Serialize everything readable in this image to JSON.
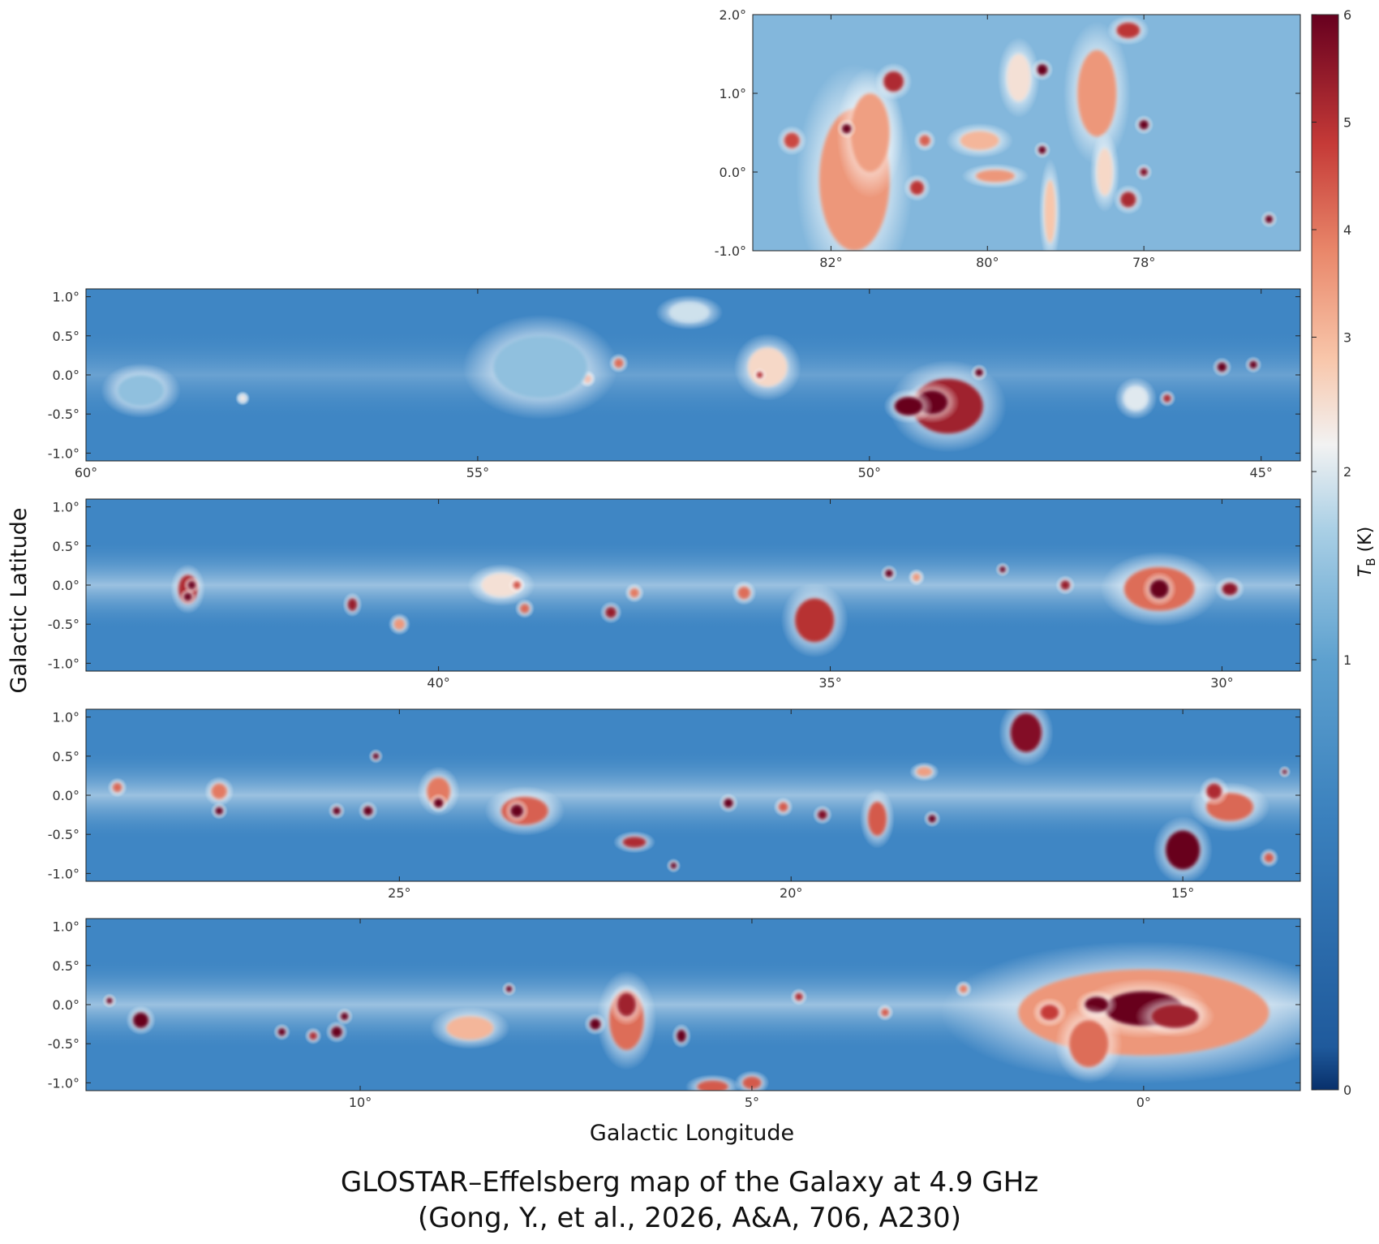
{
  "caption": {
    "line1": "GLOSTAR–Effelsberg map of the Galaxy at 4.9 GHz",
    "line2": "(Gong, Y., et al., 2026, A&A, 706, A230)"
  },
  "chart_data": {
    "type": "heatmap",
    "xlabel": "Galactic Longitude",
    "ylabel": "Galactic Latitude",
    "colorbar": {
      "label_main": "T",
      "label_sub": "B",
      "label_unit": " (K)",
      "range": [
        0,
        6
      ],
      "ticks": [
        0,
        1,
        2,
        3,
        4,
        5,
        6
      ],
      "tick_labels": [
        "0",
        "1",
        "2",
        "3",
        "4",
        "5",
        "6"
      ],
      "stretch": "nonlinear",
      "colormap": [
        "#08306b",
        "#2166ac",
        "#4393c3",
        "#92c5de",
        "#f7f7f7",
        "#f4a582",
        "#d6604d",
        "#b2182b",
        "#67001f"
      ]
    },
    "panels": [
      {
        "id": "cygnus",
        "lon_range": [
          83.0,
          76.0
        ],
        "lat_range": [
          -1.0,
          2.0
        ],
        "x_ticks": [
          82,
          80,
          78
        ],
        "x_tick_labels": [
          "82°",
          "80°",
          "78°"
        ],
        "y_ticks": [
          -1,
          0,
          1,
          2
        ],
        "y_tick_labels": [
          "-1.0°",
          "0.0°",
          "1.0°",
          "2.0°"
        ],
        "sources": [
          {
            "l": 81.7,
            "b": -0.1,
            "a": 0.45,
            "c": 0.9,
            "t": 2.6
          },
          {
            "l": 81.5,
            "b": 0.5,
            "a": 0.25,
            "c": 0.5,
            "t": 2.5
          },
          {
            "l": 81.8,
            "b": 0.55,
            "a": 0.06,
            "c": 0.06,
            "t": 6
          },
          {
            "l": 81.2,
            "b": 1.15,
            "a": 0.13,
            "c": 0.13,
            "t": 4.5
          },
          {
            "l": 82.5,
            "b": 0.4,
            "a": 0.1,
            "c": 0.1,
            "t": 3.8
          },
          {
            "l": 80.9,
            "b": -0.2,
            "a": 0.09,
            "c": 0.09,
            "t": 4.2
          },
          {
            "l": 80.8,
            "b": 0.4,
            "a": 0.07,
            "c": 0.07,
            "t": 3.4
          },
          {
            "l": 80.1,
            "b": 0.4,
            "a": 0.25,
            "c": 0.12,
            "t": 2.2
          },
          {
            "l": 79.9,
            "b": -0.05,
            "a": 0.25,
            "c": 0.08,
            "t": 2.6
          },
          {
            "l": 79.3,
            "b": 1.3,
            "a": 0.07,
            "c": 0.07,
            "t": 6
          },
          {
            "l": 79.3,
            "b": 0.28,
            "a": 0.05,
            "c": 0.05,
            "t": 6
          },
          {
            "l": 79.2,
            "b": -0.5,
            "a": 0.07,
            "c": 0.4,
            "t": 2.0
          },
          {
            "l": 78.6,
            "b": 1.0,
            "a": 0.25,
            "c": 0.55,
            "t": 2.6
          },
          {
            "l": 78.2,
            "b": 1.8,
            "a": 0.15,
            "c": 0.1,
            "t": 4.2
          },
          {
            "l": 78.0,
            "b": 0.6,
            "a": 0.06,
            "c": 0.06,
            "t": 6
          },
          {
            "l": 78.0,
            "b": 0.0,
            "a": 0.05,
            "c": 0.05,
            "t": 5.5
          },
          {
            "l": 78.2,
            "b": -0.35,
            "a": 0.1,
            "c": 0.1,
            "t": 4.6
          },
          {
            "l": 78.5,
            "b": 0.0,
            "a": 0.1,
            "c": 0.3,
            "t": 1.8
          },
          {
            "l": 76.4,
            "b": -0.6,
            "a": 0.05,
            "c": 0.05,
            "t": 6
          },
          {
            "l": 79.6,
            "b": 1.2,
            "a": 0.15,
            "c": 0.3,
            "t": 1.7
          }
        ]
      },
      {
        "id": "lon60-45",
        "lon_range": [
          60.0,
          44.5
        ],
        "lat_range": [
          -1.1,
          1.1
        ],
        "x_ticks": [
          60,
          55,
          50,
          45
        ],
        "x_tick_labels": [
          "60°",
          "55°",
          "50°",
          "45°"
        ],
        "y_ticks": [
          -1,
          -0.5,
          0,
          0.5,
          1
        ],
        "y_tick_labels": [
          "-1.0°",
          "-0.5°",
          "0.0°",
          "0.5°",
          "1.0°"
        ],
        "sources": [
          {
            "l": 49.0,
            "b": -0.4,
            "a": 0.45,
            "c": 0.35,
            "t": 4.8
          },
          {
            "l": 49.2,
            "b": -0.35,
            "a": 0.2,
            "c": 0.15,
            "t": 6
          },
          {
            "l": 49.5,
            "b": -0.4,
            "a": 0.18,
            "c": 0.12,
            "t": 6
          },
          {
            "l": 48.6,
            "b": 0.03,
            "a": 0.05,
            "c": 0.05,
            "t": 6
          },
          {
            "l": 51.3,
            "b": 0.1,
            "a": 0.25,
            "c": 0.25,
            "t": 1.8
          },
          {
            "l": 51.4,
            "b": 0.0,
            "a": 0.04,
            "c": 0.04,
            "t": 4.5
          },
          {
            "l": 53.2,
            "b": 0.15,
            "a": 0.06,
            "c": 0.06,
            "t": 3.2
          },
          {
            "l": 53.6,
            "b": -0.05,
            "a": 0.05,
            "c": 0.05,
            "t": 2.8
          },
          {
            "l": 52.3,
            "b": 0.8,
            "a": 0.25,
            "c": 0.12,
            "t": 1.3
          },
          {
            "l": 46.2,
            "b": -0.3,
            "a": 0.05,
            "c": 0.05,
            "t": 4.5
          },
          {
            "l": 45.5,
            "b": 0.1,
            "a": 0.06,
            "c": 0.06,
            "t": 6
          },
          {
            "l": 45.1,
            "b": 0.13,
            "a": 0.05,
            "c": 0.05,
            "t": 6
          },
          {
            "l": 46.6,
            "b": -0.3,
            "a": 0.15,
            "c": 0.15,
            "t": 1.4
          },
          {
            "l": 54.2,
            "b": 0.1,
            "a": 0.6,
            "c": 0.4,
            "t": 1.0
          },
          {
            "l": 59.3,
            "b": -0.2,
            "a": 0.3,
            "c": 0.2,
            "t": 1.0
          },
          {
            "l": 58.0,
            "b": -0.3,
            "a": 0.04,
            "c": 0.04,
            "t": 1.6
          }
        ]
      },
      {
        "id": "lon44-29",
        "lon_range": [
          44.5,
          29.0
        ],
        "lat_range": [
          -1.1,
          1.1
        ],
        "x_ticks": [
          40,
          35,
          30
        ],
        "x_tick_labels": [
          "40°",
          "35°",
          "30°"
        ],
        "y_ticks": [
          -1,
          -0.5,
          0,
          0.5,
          1
        ],
        "y_tick_labels": [
          "-1.0°",
          "-0.5°",
          "0.0°",
          "0.5°",
          "1.0°"
        ],
        "sources": [
          {
            "l": 43.2,
            "b": -0.05,
            "a": 0.12,
            "c": 0.18,
            "t": 4.5
          },
          {
            "l": 43.2,
            "b": -0.15,
            "a": 0.05,
            "c": 0.05,
            "t": 6
          },
          {
            "l": 43.15,
            "b": 0.0,
            "a": 0.05,
            "c": 0.05,
            "t": 6
          },
          {
            "l": 41.1,
            "b": -0.25,
            "a": 0.06,
            "c": 0.08,
            "t": 5
          },
          {
            "l": 40.5,
            "b": -0.5,
            "a": 0.07,
            "c": 0.07,
            "t": 2.6
          },
          {
            "l": 37.8,
            "b": -0.35,
            "a": 0.07,
            "c": 0.07,
            "t": 5
          },
          {
            "l": 37.5,
            "b": -0.1,
            "a": 0.06,
            "c": 0.06,
            "t": 3
          },
          {
            "l": 35.2,
            "b": -0.45,
            "a": 0.25,
            "c": 0.28,
            "t": 4.3
          },
          {
            "l": 34.25,
            "b": 0.15,
            "a": 0.05,
            "c": 0.05,
            "t": 6
          },
          {
            "l": 36.1,
            "b": -0.1,
            "a": 0.08,
            "c": 0.08,
            "t": 3.2
          },
          {
            "l": 32.8,
            "b": 0.2,
            "a": 0.04,
            "c": 0.04,
            "t": 6
          },
          {
            "l": 32.0,
            "b": 0.0,
            "a": 0.06,
            "c": 0.06,
            "t": 5
          },
          {
            "l": 30.8,
            "b": -0.05,
            "a": 0.45,
            "c": 0.28,
            "t": 3.2
          },
          {
            "l": 30.8,
            "b": -0.05,
            "a": 0.12,
            "c": 0.12,
            "t": 6
          },
          {
            "l": 29.9,
            "b": -0.05,
            "a": 0.1,
            "c": 0.08,
            "t": 5.2
          },
          {
            "l": 33.9,
            "b": 0.1,
            "a": 0.05,
            "c": 0.05,
            "t": 2.6
          },
          {
            "l": 39.2,
            "b": 0.0,
            "a": 0.25,
            "c": 0.15,
            "t": 1.7
          },
          {
            "l": 38.9,
            "b": -0.3,
            "a": 0.06,
            "c": 0.06,
            "t": 3.3
          },
          {
            "l": 39.0,
            "b": 0.0,
            "a": 0.05,
            "c": 0.05,
            "t": 3.6
          }
        ]
      },
      {
        "id": "lon28-13",
        "lon_range": [
          29.0,
          13.5
        ],
        "lat_range": [
          -1.1,
          1.1
        ],
        "x_ticks": [
          25,
          20,
          15
        ],
        "x_tick_labels": [
          "25°",
          "20°",
          "15°"
        ],
        "y_ticks": [
          -1,
          -0.5,
          0,
          0.5,
          1
        ],
        "y_tick_labels": [
          "-1.0°",
          "-0.5°",
          "0.0°",
          "0.5°",
          "1.0°"
        ],
        "sources": [
          {
            "l": 17.0,
            "b": 0.8,
            "a": 0.2,
            "c": 0.25,
            "t": 5.4
          },
          {
            "l": 15.0,
            "b": -0.7,
            "a": 0.22,
            "c": 0.25,
            "t": 6
          },
          {
            "l": 14.4,
            "b": -0.15,
            "a": 0.3,
            "c": 0.18,
            "t": 3.3
          },
          {
            "l": 14.6,
            "b": 0.05,
            "a": 0.1,
            "c": 0.1,
            "t": 4.5
          },
          {
            "l": 23.4,
            "b": -0.2,
            "a": 0.3,
            "c": 0.18,
            "t": 3.4
          },
          {
            "l": 23.5,
            "b": -0.2,
            "a": 0.08,
            "c": 0.08,
            "t": 6
          },
          {
            "l": 24.5,
            "b": 0.05,
            "a": 0.15,
            "c": 0.18,
            "t": 3
          },
          {
            "l": 24.5,
            "b": -0.1,
            "a": 0.06,
            "c": 0.06,
            "t": 6
          },
          {
            "l": 25.4,
            "b": -0.2,
            "a": 0.06,
            "c": 0.06,
            "t": 6
          },
          {
            "l": 25.8,
            "b": -0.2,
            "a": 0.05,
            "c": 0.05,
            "t": 6
          },
          {
            "l": 25.3,
            "b": 0.5,
            "a": 0.04,
            "c": 0.04,
            "t": 6
          },
          {
            "l": 22.0,
            "b": -0.6,
            "a": 0.15,
            "c": 0.07,
            "t": 4.5
          },
          {
            "l": 21.5,
            "b": -0.9,
            "a": 0.04,
            "c": 0.04,
            "t": 6
          },
          {
            "l": 20.8,
            "b": -0.1,
            "a": 0.06,
            "c": 0.06,
            "t": 6
          },
          {
            "l": 18.9,
            "b": -0.3,
            "a": 0.12,
            "c": 0.22,
            "t": 3.5
          },
          {
            "l": 18.3,
            "b": 0.3,
            "a": 0.1,
            "c": 0.06,
            "t": 2.5
          },
          {
            "l": 18.2,
            "b": -0.3,
            "a": 0.05,
            "c": 0.05,
            "t": 6
          },
          {
            "l": 27.3,
            "b": 0.05,
            "a": 0.1,
            "c": 0.1,
            "t": 3
          },
          {
            "l": 27.3,
            "b": -0.2,
            "a": 0.05,
            "c": 0.05,
            "t": 6
          },
          {
            "l": 28.6,
            "b": 0.1,
            "a": 0.06,
            "c": 0.06,
            "t": 3.3
          },
          {
            "l": 19.6,
            "b": -0.25,
            "a": 0.06,
            "c": 0.06,
            "t": 5.5
          },
          {
            "l": 20.1,
            "b": -0.15,
            "a": 0.06,
            "c": 0.06,
            "t": 3.5
          },
          {
            "l": 13.9,
            "b": -0.8,
            "a": 0.06,
            "c": 0.06,
            "t": 3.5
          },
          {
            "l": 13.7,
            "b": 0.3,
            "a": 0.03,
            "c": 0.03,
            "t": 6
          }
        ]
      },
      {
        "id": "lon13-minus2",
        "lon_range": [
          13.5,
          -2.0
        ],
        "lat_range": [
          -1.1,
          1.1
        ],
        "x_ticks": [
          10,
          5,
          0
        ],
        "x_tick_labels": [
          "10°",
          "5°",
          "0°"
        ],
        "y_ticks": [
          -1,
          -0.5,
          0,
          0.5,
          1
        ],
        "y_tick_labels": [
          "-1.0°",
          "-0.5°",
          "0.0°",
          "0.5°",
          "1.0°"
        ],
        "sources": [
          {
            "l": 0.0,
            "b": -0.1,
            "a": 1.6,
            "c": 0.55,
            "t": 2.6
          },
          {
            "l": 0.0,
            "b": -0.05,
            "a": 0.5,
            "c": 0.22,
            "t": 6
          },
          {
            "l": 0.6,
            "b": 0.0,
            "a": 0.15,
            "c": 0.1,
            "t": 6
          },
          {
            "l": -0.4,
            "b": -0.15,
            "a": 0.3,
            "c": 0.15,
            "t": 4.8
          },
          {
            "l": 0.7,
            "b": -0.5,
            "a": 0.25,
            "c": 0.3,
            "t": 3.2
          },
          {
            "l": 1.2,
            "b": -0.1,
            "a": 0.12,
            "c": 0.1,
            "t": 4
          },
          {
            "l": 6.6,
            "b": -0.2,
            "a": 0.22,
            "c": 0.38,
            "t": 3.2
          },
          {
            "l": 6.6,
            "b": 0.0,
            "a": 0.12,
            "c": 0.15,
            "t": 4.8
          },
          {
            "l": 5.9,
            "b": -0.4,
            "a": 0.06,
            "c": 0.08,
            "t": 6
          },
          {
            "l": 7.0,
            "b": -0.25,
            "a": 0.07,
            "c": 0.07,
            "t": 6
          },
          {
            "l": 12.8,
            "b": -0.2,
            "a": 0.1,
            "c": 0.1,
            "t": 6
          },
          {
            "l": 10.3,
            "b": -0.35,
            "a": 0.07,
            "c": 0.07,
            "t": 6
          },
          {
            "l": 10.2,
            "b": -0.15,
            "a": 0.05,
            "c": 0.05,
            "t": 6
          },
          {
            "l": 10.6,
            "b": -0.4,
            "a": 0.05,
            "c": 0.05,
            "t": 4.5
          },
          {
            "l": 11.0,
            "b": -0.35,
            "a": 0.05,
            "c": 0.05,
            "t": 6
          },
          {
            "l": 8.6,
            "b": -0.3,
            "a": 0.3,
            "c": 0.15,
            "t": 2.2
          },
          {
            "l": 8.1,
            "b": 0.2,
            "a": 0.04,
            "c": 0.04,
            "t": 6
          },
          {
            "l": 4.4,
            "b": 0.1,
            "a": 0.05,
            "c": 0.05,
            "t": 4.5
          },
          {
            "l": 13.2,
            "b": 0.05,
            "a": 0.04,
            "c": 0.04,
            "t": 6
          },
          {
            "l": 3.3,
            "b": -0.1,
            "a": 0.05,
            "c": 0.05,
            "t": 3.5
          },
          {
            "l": 2.3,
            "b": 0.2,
            "a": 0.05,
            "c": 0.05,
            "t": 3
          },
          {
            "l": 5.5,
            "b": -1.05,
            "a": 0.2,
            "c": 0.08,
            "t": 3.5
          },
          {
            "l": 5.0,
            "b": -1.0,
            "a": 0.12,
            "c": 0.08,
            "t": 3.5
          }
        ]
      }
    ]
  }
}
